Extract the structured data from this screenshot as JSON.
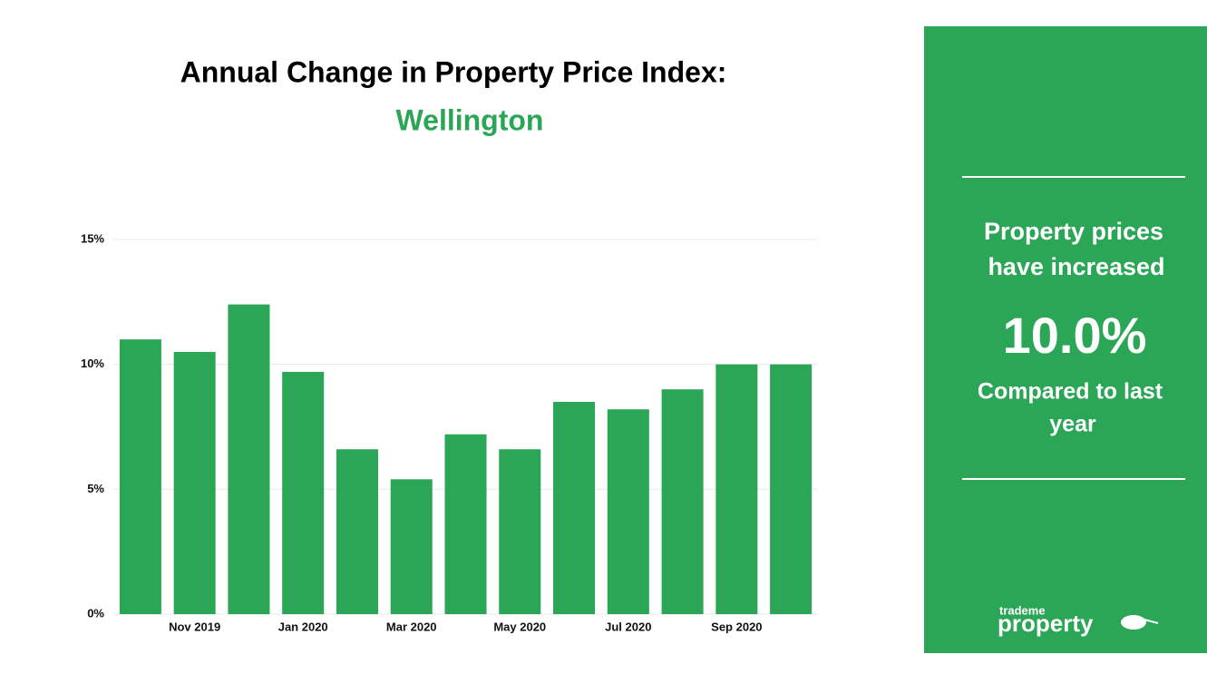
{
  "chart_data": {
    "type": "bar",
    "title": "Annual Change in Property Price Index:",
    "subtitle": "Wellington",
    "categories": [
      null,
      "Nov 2019",
      null,
      "Jan 2020",
      null,
      "Mar 2020",
      null,
      "May 2020",
      null,
      "Jul 2020",
      null,
      "Sep 2020",
      null
    ],
    "values": [
      11.0,
      10.5,
      12.4,
      9.7,
      6.6,
      5.4,
      7.2,
      6.6,
      8.5,
      8.2,
      9.0,
      10.0,
      10.0
    ],
    "color": "#2ba656",
    "ylim": [
      0,
      15
    ],
    "yticks": [
      {
        "value": 0,
        "label": "0%"
      },
      {
        "value": 5,
        "label": "5%"
      },
      {
        "value": 10,
        "label": "10%"
      },
      {
        "value": 15,
        "label": "15%"
      }
    ],
    "grid": true
  },
  "panel": {
    "headline": [
      "Property prices",
      "have increased"
    ],
    "figure": "10.0%",
    "footer": [
      "Compared to last",
      "year"
    ],
    "logo": {
      "small": "trademe",
      "big": "property"
    }
  }
}
